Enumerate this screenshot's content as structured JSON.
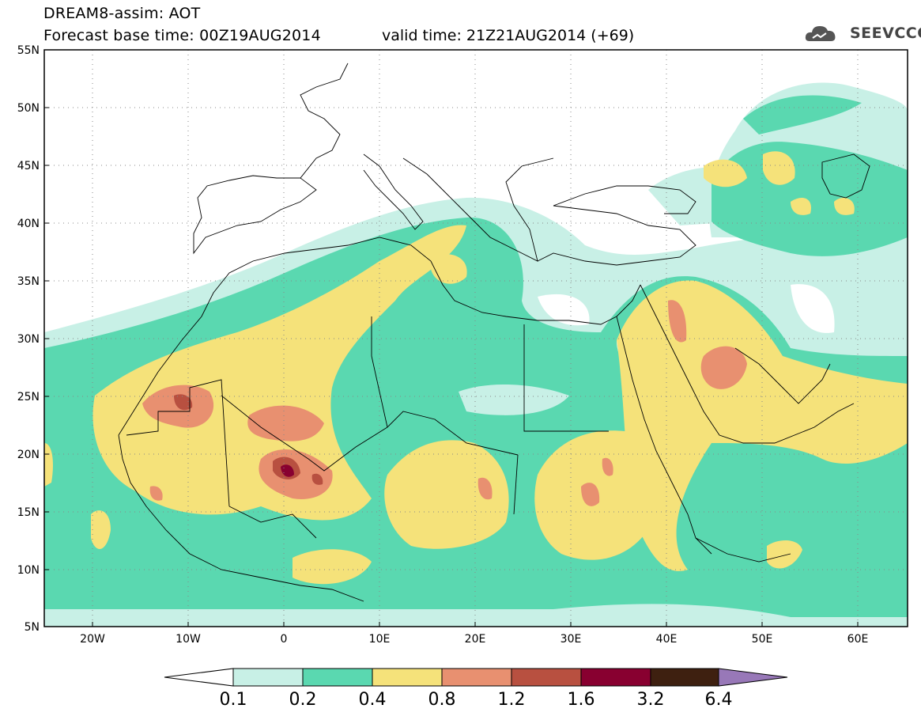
{
  "header": {
    "line1": "DREAM8-assim: AOT",
    "base_time": "Forecast base time: 00Z19AUG2014",
    "valid_time": "valid time: 21Z21AUG2014 (+69)"
  },
  "logo": {
    "text": "SEEVCCC",
    "icon": "cloud-logo-icon"
  },
  "map": {
    "projection": "lat-lon",
    "lon_range": [
      -25,
      65
    ],
    "lat_range": [
      5,
      55
    ],
    "lat_ticks": [
      "55N",
      "50N",
      "45N",
      "40N",
      "35N",
      "30N",
      "25N",
      "20N",
      "15N",
      "10N",
      "5N"
    ],
    "lon_ticks": [
      "20W",
      "10W",
      "0",
      "10E",
      "20E",
      "30E",
      "40E",
      "50E",
      "60E"
    ],
    "grid": "dotted"
  },
  "colorbar": {
    "labels": [
      "0.1",
      "0.2",
      "0.4",
      "0.8",
      "1.2",
      "1.6",
      "3.2",
      "6.4"
    ],
    "colors": [
      "#c8f0e6",
      "#5ad8b0",
      "#f5e27a",
      "#e89070",
      "#b85040",
      "#880030",
      "#3e2010",
      "#9878b8"
    ]
  }
}
